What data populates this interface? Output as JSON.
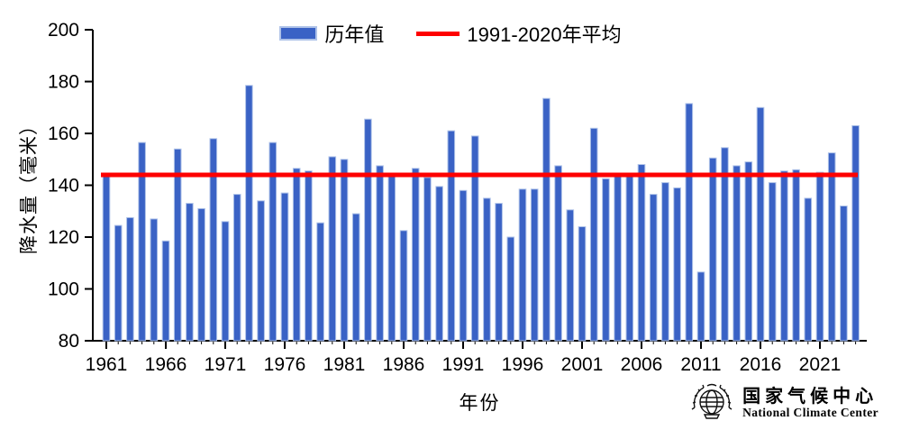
{
  "chart_data": {
    "type": "bar",
    "title": "",
    "xlabel": "年份",
    "ylabel": "降水量（毫米）",
    "ylim": [
      80,
      200
    ],
    "y_ticks": [
      80,
      100,
      120,
      140,
      160,
      180,
      200
    ],
    "x_tick_labels": [
      "1961",
      "1966",
      "1971",
      "1976",
      "1981",
      "1986",
      "1991",
      "1996",
      "2001",
      "2006",
      "2011",
      "2016",
      "2021"
    ],
    "grid": "off",
    "legend_position": "top-center",
    "legend": {
      "series": "历年值",
      "average": "1991-2020年平均"
    },
    "bar_color": "#3a62c5",
    "bar_edge_color": "#aec2e8",
    "average_line": {
      "value": 144,
      "color": "#fe0000"
    },
    "years": [
      1961,
      1962,
      1963,
      1964,
      1965,
      1966,
      1967,
      1968,
      1969,
      1970,
      1971,
      1972,
      1973,
      1974,
      1975,
      1976,
      1977,
      1978,
      1979,
      1980,
      1981,
      1982,
      1983,
      1984,
      1985,
      1986,
      1987,
      1988,
      1989,
      1990,
      1991,
      1992,
      1993,
      1994,
      1995,
      1996,
      1997,
      1998,
      1999,
      2000,
      2001,
      2002,
      2003,
      2004,
      2005,
      2006,
      2007,
      2008,
      2009,
      2010,
      2011,
      2012,
      2013,
      2014,
      2015,
      2016,
      2017,
      2018,
      2019,
      2020,
      2021,
      2022,
      2023,
      2024
    ],
    "values": [
      143.5,
      124.5,
      127.5,
      156.5,
      127,
      118.5,
      154,
      133,
      131,
      158,
      126,
      136.5,
      178.5,
      134,
      156.5,
      137,
      146.5,
      145.5,
      125.5,
      151,
      150,
      129,
      165.5,
      147.5,
      143.5,
      122.5,
      146.5,
      143,
      139.5,
      161,
      138,
      159,
      135,
      133,
      120,
      138.5,
      138.5,
      173.5,
      147.5,
      130.5,
      124,
      162,
      142.5,
      144.5,
      143.5,
      148,
      136.5,
      141,
      139,
      171.5,
      106.5,
      150.5,
      154.5,
      147.5,
      149,
      170,
      141,
      145.5,
      146,
      135,
      145,
      152.5,
      132,
      163
    ]
  },
  "logo": {
    "name_zh": "国家气候中心",
    "name_en": "National Climate Center"
  }
}
